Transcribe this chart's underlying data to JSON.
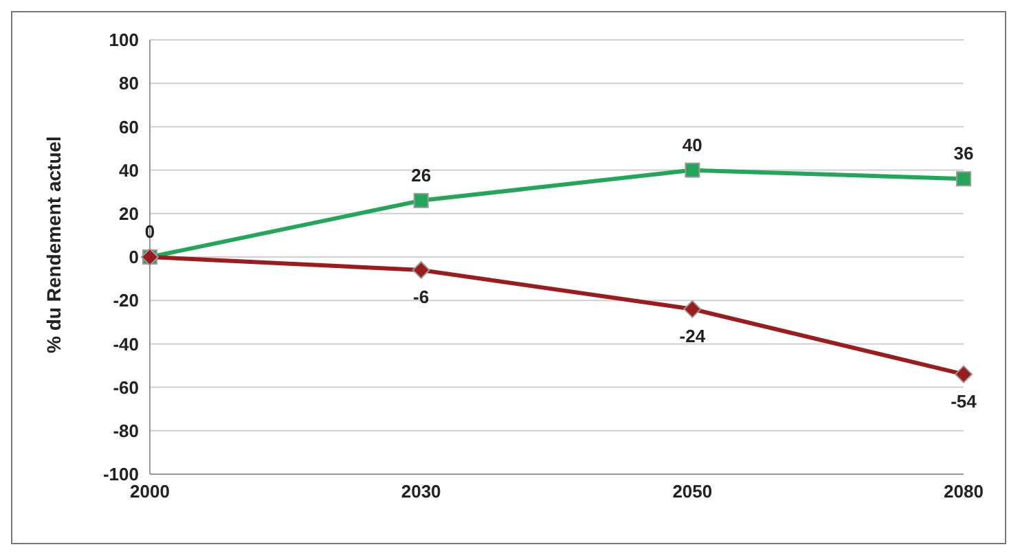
{
  "chart_data": {
    "type": "line",
    "ylabel": "% du Rendement actuel",
    "categories": [
      "2000",
      "2030",
      "2050",
      "2080"
    ],
    "series": [
      {
        "color": "#23a55a",
        "marker": "square",
        "values": [
          0,
          26,
          40,
          36
        ],
        "value_labels": [
          "0",
          "26",
          "40",
          "36"
        ]
      },
      {
        "color": "#9b1c1c",
        "marker": "diamond",
        "values": [
          0,
          -6,
          -24,
          -54
        ],
        "value_labels": [
          null,
          "-6",
          "-24",
          "-54"
        ]
      }
    ],
    "ylim": [
      -100,
      100
    ],
    "yticks": [
      -100,
      -80,
      -60,
      -40,
      -20,
      0,
      20,
      40,
      60,
      80,
      100
    ],
    "grid": "y",
    "legend": false
  }
}
